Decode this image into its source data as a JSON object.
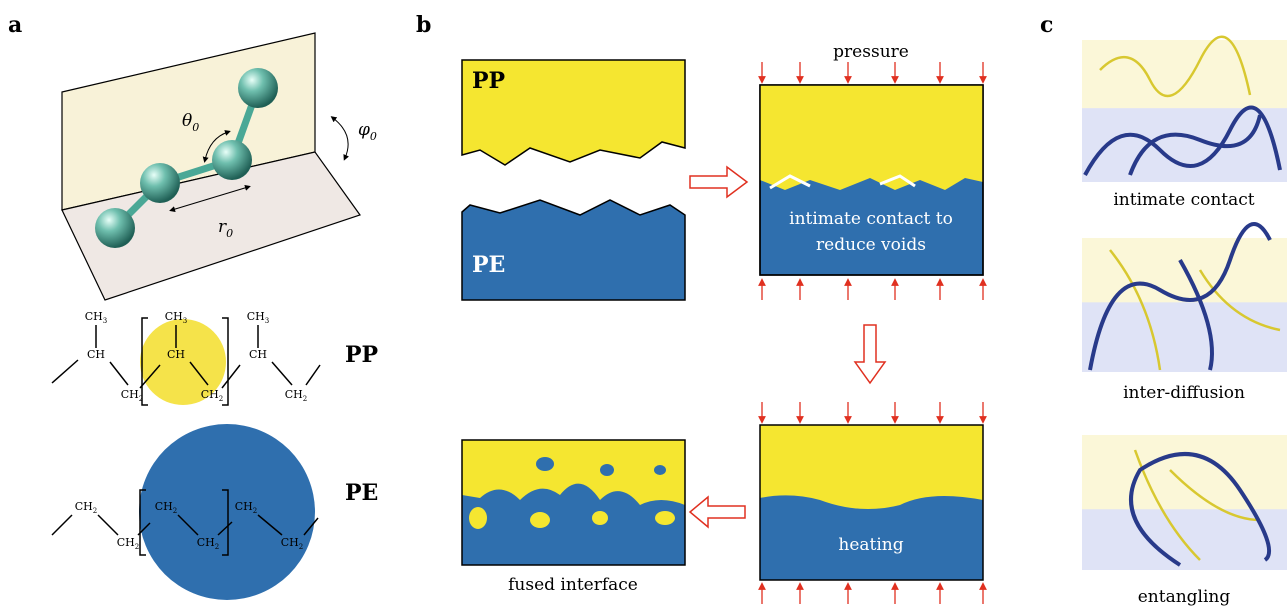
{
  "panel_a": {
    "label": "a",
    "theta": {
      "symbol": "θ",
      "sub": "0"
    },
    "phi": {
      "symbol": "φ",
      "sub": "0"
    },
    "bond": {
      "symbol": "r",
      "sub": "0"
    },
    "pp": {
      "name": "PP",
      "groups": [
        {
          "text": "CH",
          "sub": "3"
        },
        {
          "text": "CH",
          "sub": "3"
        },
        {
          "text": "CH",
          "sub": "3"
        },
        {
          "text": "CH",
          "sub": ""
        },
        {
          "text": "CH",
          "sub": ""
        },
        {
          "text": "CH",
          "sub": ""
        },
        {
          "text": "CH",
          "sub": "2"
        },
        {
          "text": "CH",
          "sub": "2"
        },
        {
          "text": "CH",
          "sub": "2"
        }
      ]
    },
    "pe": {
      "name": "PE",
      "groups": [
        {
          "text": "CH",
          "sub": "2"
        },
        {
          "text": "CH",
          "sub": "2"
        },
        {
          "text": "CH",
          "sub": "2"
        },
        {
          "text": "CH",
          "sub": "2"
        },
        {
          "text": "CH",
          "sub": "2"
        },
        {
          "text": "CH",
          "sub": "2"
        }
      ]
    }
  },
  "panel_b": {
    "label": "b",
    "top_material": "PP",
    "bottom_material": "PE",
    "pressure": "pressure",
    "contact_lines": [
      "intimate contact to",
      "reduce voids"
    ],
    "heating": "heating",
    "fused": "fused interface"
  },
  "panel_c": {
    "label": "c",
    "captions": [
      "intimate contact",
      "inter-diffusion",
      "entangling"
    ]
  }
}
